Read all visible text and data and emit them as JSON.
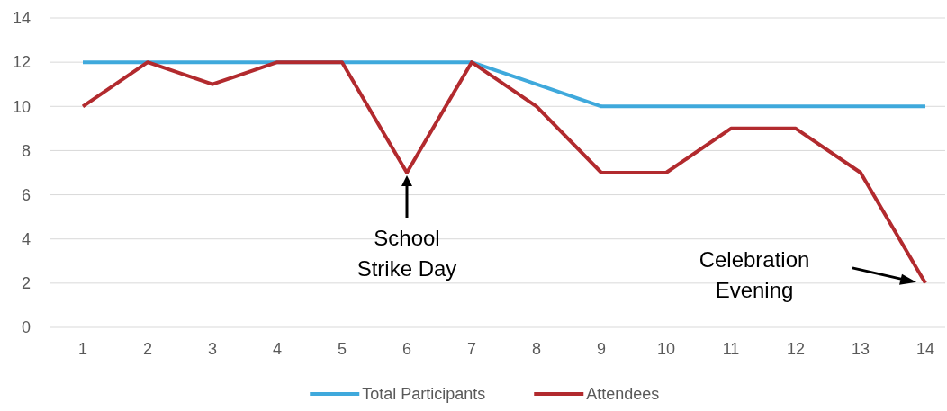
{
  "chart_data": {
    "type": "line",
    "categories": [
      "1",
      "2",
      "3",
      "4",
      "5",
      "6",
      "7",
      "8",
      "9",
      "10",
      "11",
      "12",
      "13",
      "14"
    ],
    "series": [
      {
        "name": "Total Participants",
        "color": "#3fa9dc",
        "values": [
          12,
          12,
          12,
          12,
          12,
          12,
          12,
          11,
          10,
          10,
          10,
          10,
          10,
          10
        ]
      },
      {
        "name": "Attendees",
        "color": "#b22a2e",
        "values": [
          10,
          12,
          11,
          12,
          12,
          7,
          12,
          10,
          7,
          7,
          9,
          9,
          7,
          2
        ]
      }
    ],
    "ylim": [
      0,
      14
    ],
    "yticks": [
      0,
      2,
      4,
      6,
      8,
      10,
      12,
      14
    ],
    "grid": "y",
    "legend": "bottom",
    "marker": "none",
    "line_style": "solid",
    "annotations": [
      {
        "text": "School Strike Day",
        "x": "6",
        "y": 7
      },
      "Celebration Evening"
    ]
  }
}
